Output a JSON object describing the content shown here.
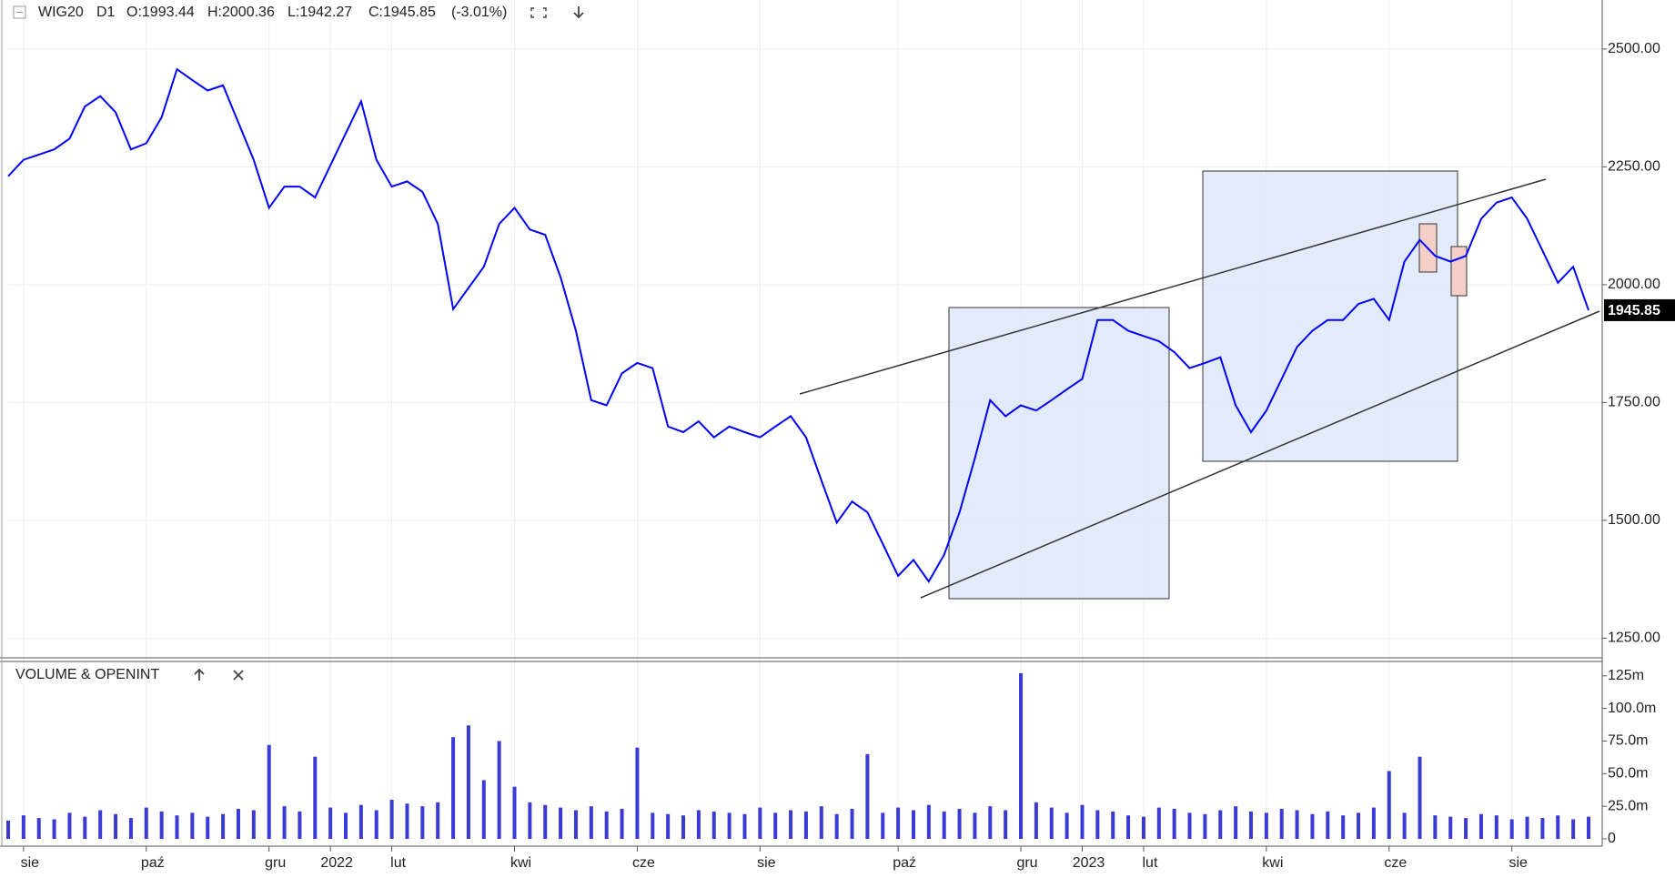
{
  "chart_data": [
    {
      "type": "line",
      "title": "WIG20",
      "timeframe": "D1",
      "ohlc": [
        "O:1993.44",
        "H:2000.36",
        "L:1942.27",
        "C:1945.85"
      ],
      "change": "(-3.01%)",
      "color": "#0000ff",
      "grid": true,
      "categories": [
        null,
        "sie",
        null,
        null,
        null,
        null,
        null,
        null,
        null,
        "paź",
        null,
        null,
        null,
        null,
        null,
        null,
        null,
        "gru",
        null,
        null,
        null,
        "2022",
        null,
        null,
        null,
        "lut",
        null,
        null,
        null,
        null,
        null,
        null,
        null,
        "kwi",
        null,
        null,
        null,
        null,
        null,
        null,
        null,
        "cze",
        null,
        null,
        null,
        null,
        null,
        null,
        null,
        "sie",
        null,
        null,
        null,
        null,
        null,
        null,
        null,
        null,
        "paź",
        null,
        null,
        null,
        null,
        null,
        null,
        null,
        "gru",
        null,
        null,
        null,
        "2023",
        null,
        null,
        null,
        "lut",
        null,
        null,
        null,
        null,
        null,
        null,
        null,
        "kwi",
        null,
        null,
        null,
        null,
        null,
        null,
        null,
        "cze",
        null,
        null,
        null,
        null,
        null,
        null,
        null,
        "sie",
        null,
        null,
        null,
        null,
        null
      ],
      "values": [
        2230,
        2265,
        2276,
        2287,
        2310,
        2378,
        2400,
        2366,
        2287,
        2300,
        2355,
        2457,
        2434,
        2412,
        2423,
        2344,
        2265,
        2163,
        2208,
        2208,
        2185,
        2253,
        2321,
        2389,
        2265,
        2208,
        2219,
        2197,
        2129,
        1948,
        1993,
        2038,
        2129,
        2163,
        2117,
        2106,
        2016,
        1902,
        1755,
        1744,
        1812,
        1834,
        1823,
        1699,
        1687,
        1710,
        1676,
        1699,
        1687,
        1676,
        1699,
        1721,
        1676,
        1585,
        1495,
        1540,
        1517,
        1450,
        1382,
        1416,
        1370,
        1427,
        1517,
        1631,
        1755,
        1721,
        1744,
        1733,
        1755,
        1778,
        1800,
        1925,
        1925,
        1902,
        1891,
        1880,
        1857,
        1823,
        1834,
        1846,
        1744,
        1687,
        1733,
        1800,
        1868,
        1902,
        1925,
        1925,
        1959,
        1970,
        1925,
        2049,
        2095,
        2061,
        2049,
        2061,
        2140,
        2174,
        2185,
        2140,
        2072,
        2004,
        2038,
        1945.85
      ],
      "ylim": [
        1216,
        2604
      ],
      "yticks": [
        {
          "value": 1250,
          "label": "1250.00"
        },
        {
          "value": 1500,
          "label": "1500.00"
        },
        {
          "value": 1750,
          "label": "1750.00"
        },
        {
          "value": 2000,
          "label": "2000.00"
        },
        {
          "value": 2250,
          "label": "2250.00"
        },
        {
          "value": 2500,
          "label": "2500.00"
        }
      ]
    },
    {
      "type": "bar",
      "title": "VOLUME & OPENINT",
      "color": "#3a3ad6",
      "values": [
        14,
        18,
        16,
        15,
        20,
        17,
        22,
        19,
        16,
        24,
        21,
        18,
        20,
        17,
        19,
        23,
        22,
        72,
        25,
        21,
        63,
        24,
        20,
        26,
        22,
        30,
        27,
        25,
        28,
        78,
        87,
        45,
        75,
        40,
        28,
        26,
        24,
        22,
        25,
        21,
        23,
        70,
        20,
        19,
        18,
        22,
        21,
        20,
        19,
        24,
        20,
        22,
        21,
        25,
        19,
        23,
        65,
        20,
        24,
        22,
        26,
        21,
        23,
        20,
        25,
        22,
        127,
        28,
        24,
        20,
        26,
        22,
        21,
        18,
        17,
        24,
        23,
        20,
        19,
        22,
        25,
        21,
        20,
        23,
        22,
        19,
        21,
        18,
        20,
        24,
        52,
        20,
        63,
        18,
        17,
        16,
        19,
        18,
        15,
        17,
        16,
        18,
        15,
        17
      ],
      "ylim": [
        0,
        136
      ],
      "yticks": [
        0,
        {
          "value": 25,
          "label": "25.0m"
        },
        {
          "value": 50,
          "label": "50.0m"
        },
        {
          "value": 75,
          "label": "75.0m"
        },
        {
          "value": 100,
          "label": "100.0m"
        },
        {
          "value": 125,
          "label": "125m"
        }
      ]
    }
  ]
}
